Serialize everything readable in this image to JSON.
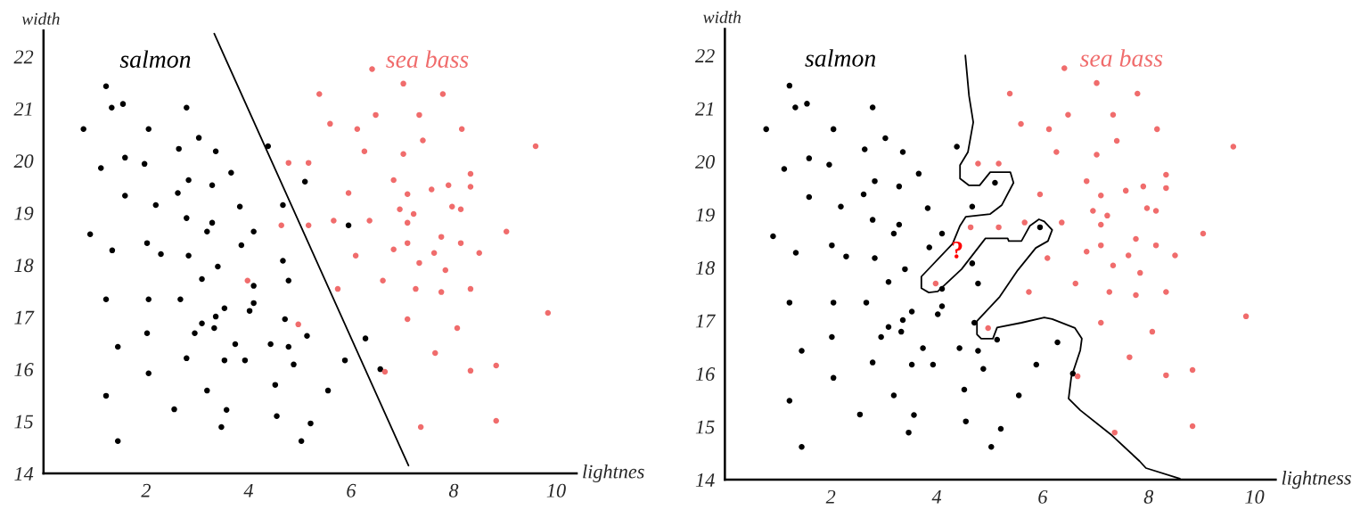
{
  "chart_data": [
    {
      "type": "scatter",
      "xlabel": "lightnes",
      "ylabel": "width",
      "xlim": [
        0,
        10.4
      ],
      "ylim": [
        14,
        22.5
      ],
      "xticks": [
        2,
        4,
        6,
        8,
        10
      ],
      "yticks": [
        14,
        15,
        16,
        17,
        18,
        19,
        20,
        21,
        22
      ],
      "grid": false,
      "legend": false,
      "series": [
        {
          "name": "salmon",
          "color": "#000000",
          "x": [
            1.22,
            1.33,
            1.55,
            2.79,
            0.78,
            2.05,
            3.03,
            2.64,
            3.36,
            4.38,
            1.59,
            1.97,
            1.12,
            3.66,
            2.83,
            3.29,
            5.1,
            1.59,
            2.62,
            2.19,
            3.83,
            4.67,
            2.79,
            3.29,
            3.19,
            4.1,
            0.91,
            2.02,
            3.86,
            1.34,
            2.29,
            2.83,
            4.67,
            3.4,
            3.09,
            4.78,
            4.1,
            1.22,
            2.05,
            2.67,
            3.53,
            4.1,
            4.02,
            3.36,
            4.71,
            3.09,
            3.33,
            2.95,
            2.02,
            5.14,
            1.45,
            3.74,
            4.43,
            4.78,
            4.88,
            2.79,
            3.53,
            3.93,
            2.05,
            4.52,
            3.19,
            5.55,
            1.22,
            2.55,
            3.57,
            4.55,
            5.21,
            3.47,
            1.45,
            5.03,
            6.28,
            5.88,
            6.57,
            5.95
          ],
          "values": [
            21.43,
            21.02,
            21.09,
            21.02,
            20.61,
            20.61,
            20.44,
            20.23,
            20.18,
            20.28,
            20.06,
            19.94,
            19.86,
            19.77,
            19.63,
            19.53,
            19.6,
            19.33,
            19.38,
            19.15,
            19.12,
            19.15,
            18.9,
            18.81,
            18.64,
            18.64,
            18.59,
            18.42,
            18.38,
            18.28,
            18.21,
            18.18,
            18.08,
            17.97,
            17.73,
            17.7,
            17.6,
            17.34,
            17.34,
            17.34,
            17.17,
            17.27,
            17.12,
            17.01,
            16.96,
            16.88,
            16.79,
            16.69,
            16.69,
            16.64,
            16.43,
            16.48,
            16.48,
            16.43,
            16.09,
            16.21,
            16.17,
            16.17,
            15.92,
            15.7,
            15.59,
            15.59,
            15.49,
            15.23,
            15.22,
            15.1,
            14.96,
            14.89,
            14.62,
            14.62,
            16.59,
            16.17,
            16.0,
            18.76
          ]
        },
        {
          "name": "sea bass",
          "color": "#f06c6c",
          "x": [
            5.38,
            5.59,
            4.78,
            5.17,
            4.64,
            5.17,
            5.66,
            3.98,
            4.97,
            6.41,
            7.02,
            7.79,
            6.48,
            7.33,
            6.12,
            8.16,
            7.4,
            9.6,
            6.26,
            7.02,
            8.33,
            6.83,
            7.9,
            8.33,
            5.95,
            7.1,
            7.57,
            7.97,
            8.14,
            6.95,
            7.22,
            6.36,
            7.1,
            9.03,
            7.76,
            7.1,
            8.14,
            6.83,
            6.09,
            7.62,
            8.5,
            7.33,
            7.84,
            5.74,
            6.62,
            7.26,
            7.76,
            8.33,
            9.84,
            7.1,
            8.07,
            7.64,
            6.66,
            8.33,
            8.83,
            7.36,
            8.83
          ],
          "values": [
            21.28,
            20.71,
            19.96,
            19.96,
            18.76,
            18.76,
            18.85,
            17.7,
            16.86,
            21.76,
            21.48,
            21.28,
            20.88,
            20.88,
            20.61,
            20.61,
            20.39,
            20.28,
            20.18,
            20.13,
            19.75,
            19.63,
            19.53,
            19.5,
            19.38,
            19.36,
            19.45,
            19.12,
            19.07,
            19.07,
            18.98,
            18.85,
            18.81,
            18.64,
            18.54,
            18.42,
            18.42,
            18.3,
            18.18,
            18.23,
            18.23,
            18.04,
            17.9,
            17.54,
            17.7,
            17.54,
            17.48,
            17.54,
            17.08,
            16.96,
            16.79,
            16.31,
            15.95,
            15.97,
            16.07,
            14.89,
            15.01
          ]
        },
        {
          "type": "line",
          "color": "#000000",
          "x": [
            3.33,
            7.12
          ],
          "values": [
            22.44,
            14.15
          ]
        }
      ]
    },
    {
      "type": "scatter",
      "xlabel": "lightness",
      "ylabel": "width",
      "xlim": [
        0,
        10.4
      ],
      "ylim": [
        14,
        22.5
      ],
      "xticks": [
        2,
        4,
        6,
        8,
        10
      ],
      "yticks": [
        14,
        15,
        16,
        17,
        18,
        19,
        20,
        21,
        22
      ],
      "grid": false,
      "legend": false,
      "annotations": [
        "?"
      ],
      "series": [
        {
          "name": "salmon",
          "color": "#000000",
          "x": [
            1.22,
            1.33,
            1.55,
            2.79,
            0.78,
            2.05,
            3.03,
            2.64,
            3.36,
            4.38,
            1.59,
            1.97,
            1.12,
            3.66,
            2.83,
            3.29,
            5.1,
            1.59,
            2.62,
            2.19,
            3.83,
            4.67,
            2.79,
            3.29,
            3.19,
            4.1,
            0.91,
            2.02,
            3.86,
            1.34,
            2.29,
            2.83,
            4.67,
            3.4,
            3.09,
            4.78,
            4.1,
            1.22,
            2.05,
            2.67,
            3.53,
            4.1,
            4.02,
            3.36,
            4.71,
            3.09,
            3.33,
            2.95,
            2.02,
            5.14,
            1.45,
            3.74,
            4.43,
            4.78,
            4.88,
            2.79,
            3.53,
            3.93,
            2.05,
            4.52,
            3.19,
            5.55,
            1.22,
            2.55,
            3.57,
            4.55,
            5.21,
            3.47,
            1.45,
            5.03,
            6.28,
            5.88,
            6.57,
            5.95
          ],
          "values": [
            21.43,
            21.02,
            21.09,
            21.02,
            20.61,
            20.61,
            20.44,
            20.23,
            20.18,
            20.28,
            20.06,
            19.94,
            19.86,
            19.77,
            19.63,
            19.53,
            19.6,
            19.33,
            19.38,
            19.15,
            19.12,
            19.15,
            18.9,
            18.81,
            18.64,
            18.64,
            18.59,
            18.42,
            18.38,
            18.28,
            18.21,
            18.18,
            18.08,
            17.97,
            17.73,
            17.7,
            17.6,
            17.34,
            17.34,
            17.34,
            17.17,
            17.27,
            17.12,
            17.01,
            16.96,
            16.88,
            16.79,
            16.69,
            16.69,
            16.64,
            16.43,
            16.48,
            16.48,
            16.43,
            16.09,
            16.21,
            16.17,
            16.17,
            15.92,
            15.7,
            15.59,
            15.59,
            15.49,
            15.23,
            15.22,
            15.1,
            14.96,
            14.89,
            14.62,
            14.62,
            16.59,
            16.17,
            16.0,
            18.76
          ]
        },
        {
          "name": "sea bass",
          "color": "#f06c6c",
          "x": [
            5.38,
            5.59,
            4.78,
            5.17,
            4.64,
            5.17,
            5.66,
            3.98,
            4.97,
            6.41,
            7.02,
            7.79,
            6.48,
            7.33,
            6.12,
            8.16,
            7.4,
            9.6,
            6.26,
            7.02,
            8.33,
            6.83,
            7.9,
            8.33,
            5.95,
            7.1,
            7.57,
            7.97,
            8.14,
            6.95,
            7.22,
            6.36,
            7.1,
            9.03,
            7.76,
            7.1,
            8.14,
            6.83,
            6.09,
            7.62,
            8.5,
            7.33,
            7.84,
            5.74,
            6.62,
            7.26,
            7.76,
            8.33,
            9.84,
            7.1,
            8.07,
            7.64,
            6.66,
            8.33,
            8.83,
            7.36,
            8.83
          ],
          "values": [
            21.28,
            20.71,
            19.96,
            19.96,
            18.76,
            18.76,
            18.85,
            17.7,
            16.86,
            21.76,
            21.48,
            21.28,
            20.88,
            20.88,
            20.61,
            20.61,
            20.39,
            20.28,
            20.18,
            20.13,
            19.75,
            19.63,
            19.53,
            19.5,
            19.38,
            19.36,
            19.45,
            19.12,
            19.07,
            19.07,
            18.98,
            18.85,
            18.81,
            18.64,
            18.54,
            18.42,
            18.42,
            18.3,
            18.18,
            18.23,
            18.23,
            18.04,
            17.9,
            17.54,
            17.7,
            17.54,
            17.48,
            17.54,
            17.08,
            16.96,
            16.79,
            16.31,
            15.95,
            15.97,
            16.07,
            14.89,
            15.01
          ]
        },
        {
          "type": "line",
          "color": "#000000",
          "x": [
            4.54,
            4.61,
            4.69,
            4.59,
            4.44,
            4.44,
            4.61,
            4.81,
            5.01,
            5.39,
            5.45,
            5.23,
            5.01,
            4.55,
            4.44,
            4.3,
            3.71,
            3.71,
            3.85,
            4.02,
            4.47,
            4.92,
            5.34,
            5.36,
            5.6,
            5.76,
            5.93,
            6.03,
            6.18,
            6.1,
            5.87,
            5.53,
            5.19,
            4.76,
            4.76,
            4.84,
            5.06,
            5.14,
            5.6,
            6.03,
            6.18,
            6.61,
            6.74,
            6.71,
            6.54,
            6.49,
            6.71,
            7.28,
            7.83,
            7.95,
            8.59
          ],
          "values": [
            22.0,
            21.24,
            20.74,
            20.18,
            19.93,
            19.68,
            19.55,
            19.55,
            19.8,
            19.8,
            19.6,
            19.18,
            19.01,
            18.96,
            18.79,
            18.45,
            17.83,
            17.61,
            17.53,
            17.55,
            17.97,
            18.55,
            18.55,
            18.5,
            18.5,
            18.79,
            18.91,
            18.87,
            18.71,
            18.5,
            18.37,
            17.95,
            17.45,
            16.99,
            16.74,
            16.66,
            16.66,
            16.87,
            16.96,
            17.06,
            17.03,
            16.86,
            16.66,
            16.44,
            15.93,
            15.53,
            15.31,
            14.86,
            14.35,
            14.22,
            14.02
          ]
        }
      ]
    }
  ]
}
